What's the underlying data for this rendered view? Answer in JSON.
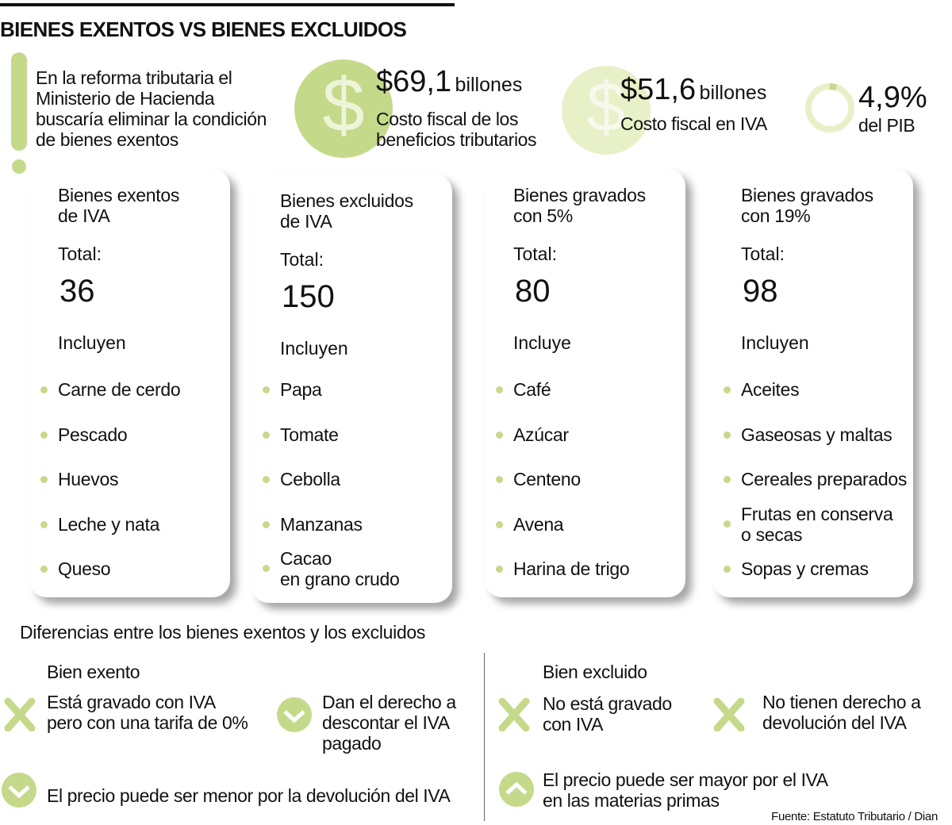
{
  "title": "BIENES EXENTOS VS BIENES EXCLUIDOS",
  "intro": "En la reforma tributaria el\nMinisterio de Hacienda\nbuscaría eliminar la condición\nde bienes exentos",
  "stat1": {
    "value": "$69,1",
    "unit": "billones",
    "label": "Costo fiscal de los\nbeneficios tributarios"
  },
  "stat2": {
    "value": "$51,6",
    "unit": "billones",
    "label": "Costo fiscal en IVA"
  },
  "stat3": {
    "value": "4,9%",
    "label": "del PIB",
    "percent": 4.9
  },
  "colors": {
    "accent": "#c5d98a",
    "accent_light": "#e8f0c8"
  },
  "cards": [
    {
      "title": "Bienes exentos\nde IVA",
      "total_label": "Total:",
      "total": "36",
      "includes": "Incluyen",
      "items": [
        "Carne de cerdo",
        "Pescado",
        "Huevos",
        "Leche y nata",
        "Queso"
      ]
    },
    {
      "title": "Bienes excluidos\nde IVA",
      "total_label": "Total:",
      "total": "150",
      "includes": "Incluyen",
      "items": [
        "Papa",
        "Tomate",
        "Cebolla",
        "Manzanas",
        "Cacao\nen grano crudo"
      ]
    },
    {
      "title": "Bienes gravados\ncon 5%",
      "total_label": "Total:",
      "total": "80",
      "includes": "Incluye",
      "items": [
        "Café",
        "Azúcar",
        "Centeno",
        "Avena",
        "Harina de trigo"
      ]
    },
    {
      "title": "Bienes gravados\ncon 19%",
      "total_label": "Total:",
      "total": "98",
      "includes": "Incluyen",
      "items": [
        "Aceites",
        "Gaseosas y maltas",
        "Cereales preparados",
        "Frutas en conserva\no secas",
        "Sopas y cremas"
      ]
    }
  ],
  "differences": {
    "title": "Diferencias entre los bienes exentos y los excluidos",
    "exento": {
      "heading": "Bien exento",
      "p1": "Está gravado con IVA\npero con una tarifa de 0%",
      "p2": "Dan el derecho a\ndescontar el IVA\npagado",
      "p3": "El precio puede ser menor por la devolución del IVA"
    },
    "excluido": {
      "heading": "Bien excluido",
      "p1": "No está gravado\ncon IVA",
      "p2": "No tienen derecho a\ndevolución del IVA",
      "p3": "El precio puede ser mayor por el IVA\nen las materias primas"
    }
  },
  "source": "Fuente: Estatuto Tributario / Dian"
}
